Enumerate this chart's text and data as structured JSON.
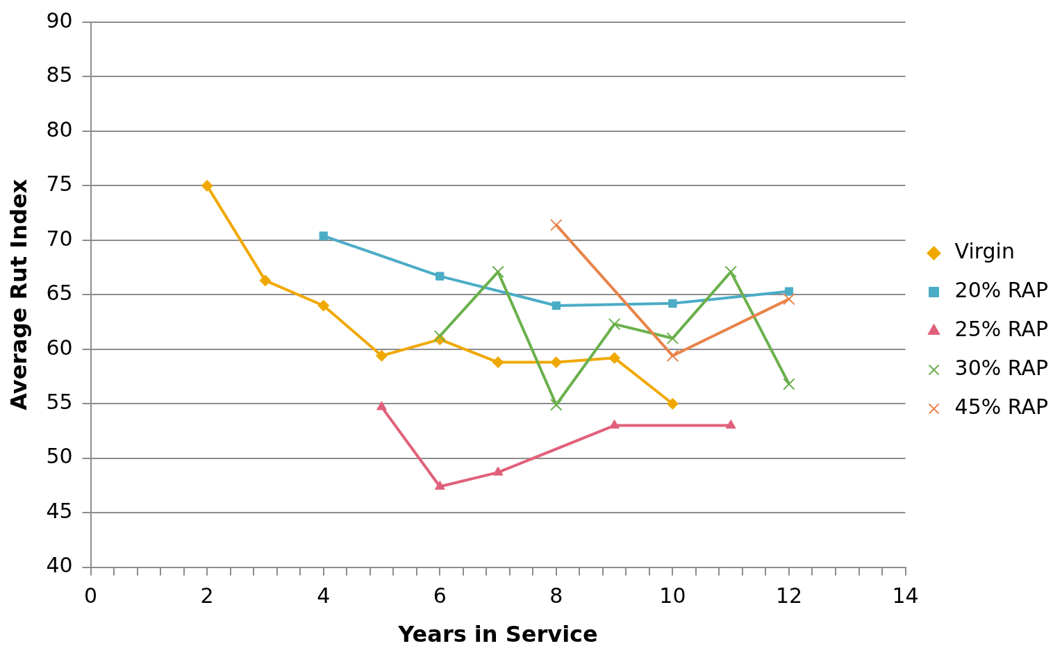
{
  "chart_data": {
    "type": "line",
    "xlabel": "Years in Service",
    "ylabel": "Average Rut Index",
    "xlim": [
      0,
      14
    ],
    "ylim": [
      40,
      90
    ],
    "xticks": [
      0,
      {
        "value": 0.4,
        "label": null
      },
      {
        "value": 0.8,
        "label": null
      },
      {
        "value": 1.2,
        "label": null
      },
      {
        "value": 1.6,
        "label": null
      },
      2,
      {
        "value": 2.4,
        "label": null
      },
      {
        "value": 2.8,
        "label": null
      },
      {
        "value": 3.2,
        "label": null
      },
      {
        "value": 3.6,
        "label": null
      },
      4,
      {
        "value": 4.4,
        "label": null
      },
      {
        "value": 4.8,
        "label": null
      },
      {
        "value": 5.2,
        "label": null
      },
      {
        "value": 5.6,
        "label": null
      },
      6,
      {
        "value": 6.4,
        "label": null
      },
      {
        "value": 6.8,
        "label": null
      },
      {
        "value": 7.2,
        "label": null
      },
      {
        "value": 7.6,
        "label": null
      },
      8,
      {
        "value": 8.4,
        "label": null
      },
      {
        "value": 8.8,
        "label": null
      },
      {
        "value": 9.2,
        "label": null
      },
      {
        "value": 9.6,
        "label": null
      },
      10,
      {
        "value": 10.4,
        "label": null
      },
      {
        "value": 10.8,
        "label": null
      },
      {
        "value": 11.2,
        "label": null
      },
      {
        "value": 11.6,
        "label": null
      },
      12,
      {
        "value": 12.4,
        "label": null
      },
      {
        "value": 12.8,
        "label": null
      },
      {
        "value": 13.2,
        "label": null
      },
      {
        "value": 13.6,
        "label": null
      },
      14
    ],
    "yticks": [
      40,
      45,
      50,
      55,
      60,
      65,
      70,
      75,
      80,
      85,
      90
    ],
    "grid": "y",
    "legend": "right",
    "line_style": "solid",
    "series": [
      {
        "name": "Virgin",
        "color": "#f0a800",
        "marker": "diamond",
        "x": [
          2,
          3,
          4,
          5,
          6,
          7,
          8,
          9,
          10
        ],
        "values": [
          75.0,
          66.3,
          64.0,
          59.4,
          60.9,
          58.8,
          58.8,
          59.2,
          55.0
        ]
      },
      {
        "name": "20% RAP",
        "color": "#4bacc6",
        "marker": "square",
        "x": [
          4,
          6,
          8,
          10,
          12
        ],
        "values": [
          70.4,
          66.7,
          64.0,
          64.2,
          65.3
        ]
      },
      {
        "name": "25% RAP",
        "color": "#e0607a",
        "marker": "triangle",
        "x": [
          5,
          6,
          7,
          9,
          11
        ],
        "values": [
          54.7,
          47.4,
          48.7,
          53.0,
          53.0
        ]
      },
      {
        "name": "30% RAP",
        "color": "#6ab04c",
        "marker": "cross",
        "x": [
          6,
          7,
          8,
          9,
          10,
          11,
          12
        ],
        "values": [
          61.2,
          67.1,
          54.9,
          62.3,
          61.0,
          67.1,
          56.8
        ]
      },
      {
        "name": "45% RAP",
        "color": "#e8834a",
        "marker": "cross",
        "x": [
          8,
          10,
          12
        ],
        "values": [
          71.4,
          59.4,
          64.6
        ]
      }
    ]
  }
}
